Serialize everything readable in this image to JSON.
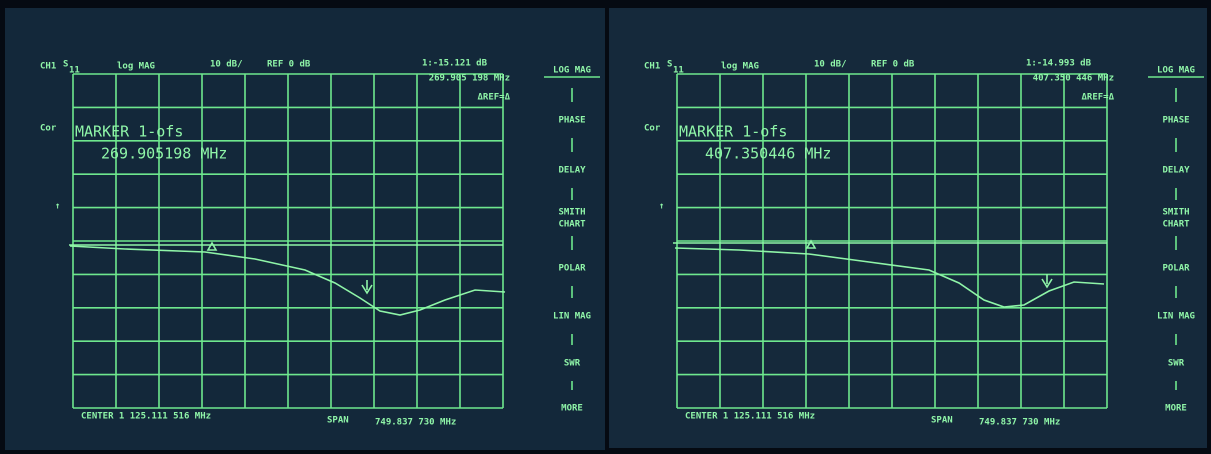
{
  "screens": [
    {
      "header": {
        "channel": "CH1",
        "param": "S",
        "param_sub": "11",
        "format": "log MAG",
        "scale": "10 dB/",
        "ref": "REF 0 dB",
        "marker_readout": "1:-15.121 dB",
        "marker_freq": "269.905 198 MHz",
        "delta_ref": "ΔREF=Δ"
      },
      "cor": "Cor",
      "marker": {
        "title": "MARKER 1-ofs",
        "value": "269.905198 MHz"
      },
      "footer": {
        "center": "CENTER 1 125.111 516 MHz",
        "span_label": "SPAN",
        "span": "749.837 730 MHz"
      },
      "menu": [
        [
          "LOG MAG"
        ],
        [
          "PHASE"
        ],
        [
          "DELAY"
        ],
        [
          "SMITH",
          "CHART"
        ],
        [
          "POLAR"
        ],
        [
          "LIN MAG"
        ],
        [
          "SWR"
        ],
        [
          "MORE"
        ]
      ]
    },
    {
      "header": {
        "channel": "CH1",
        "param": "S",
        "param_sub": "11",
        "format": "log MAG",
        "scale": "10 dB/",
        "ref": "REF 0 dB",
        "marker_readout": "1:-14.993 dB",
        "marker_freq": "407.350 446 MHz",
        "delta_ref": "ΔREF=Δ"
      },
      "cor": "Cor",
      "marker": {
        "title": "MARKER 1-ofs",
        "value": "407.350446 MHz"
      },
      "footer": {
        "center": "CENTER 1 125.111 516 MHz",
        "span_label": "SPAN",
        "span": "749.837 730 MHz"
      },
      "menu": [
        [
          "LOG MAG"
        ],
        [
          "PHASE"
        ],
        [
          "DELAY"
        ],
        [
          "SMITH",
          "CHART"
        ],
        [
          "POLAR"
        ],
        [
          "LIN MAG"
        ],
        [
          "SWR"
        ],
        [
          "MORE"
        ]
      ]
    }
  ]
}
